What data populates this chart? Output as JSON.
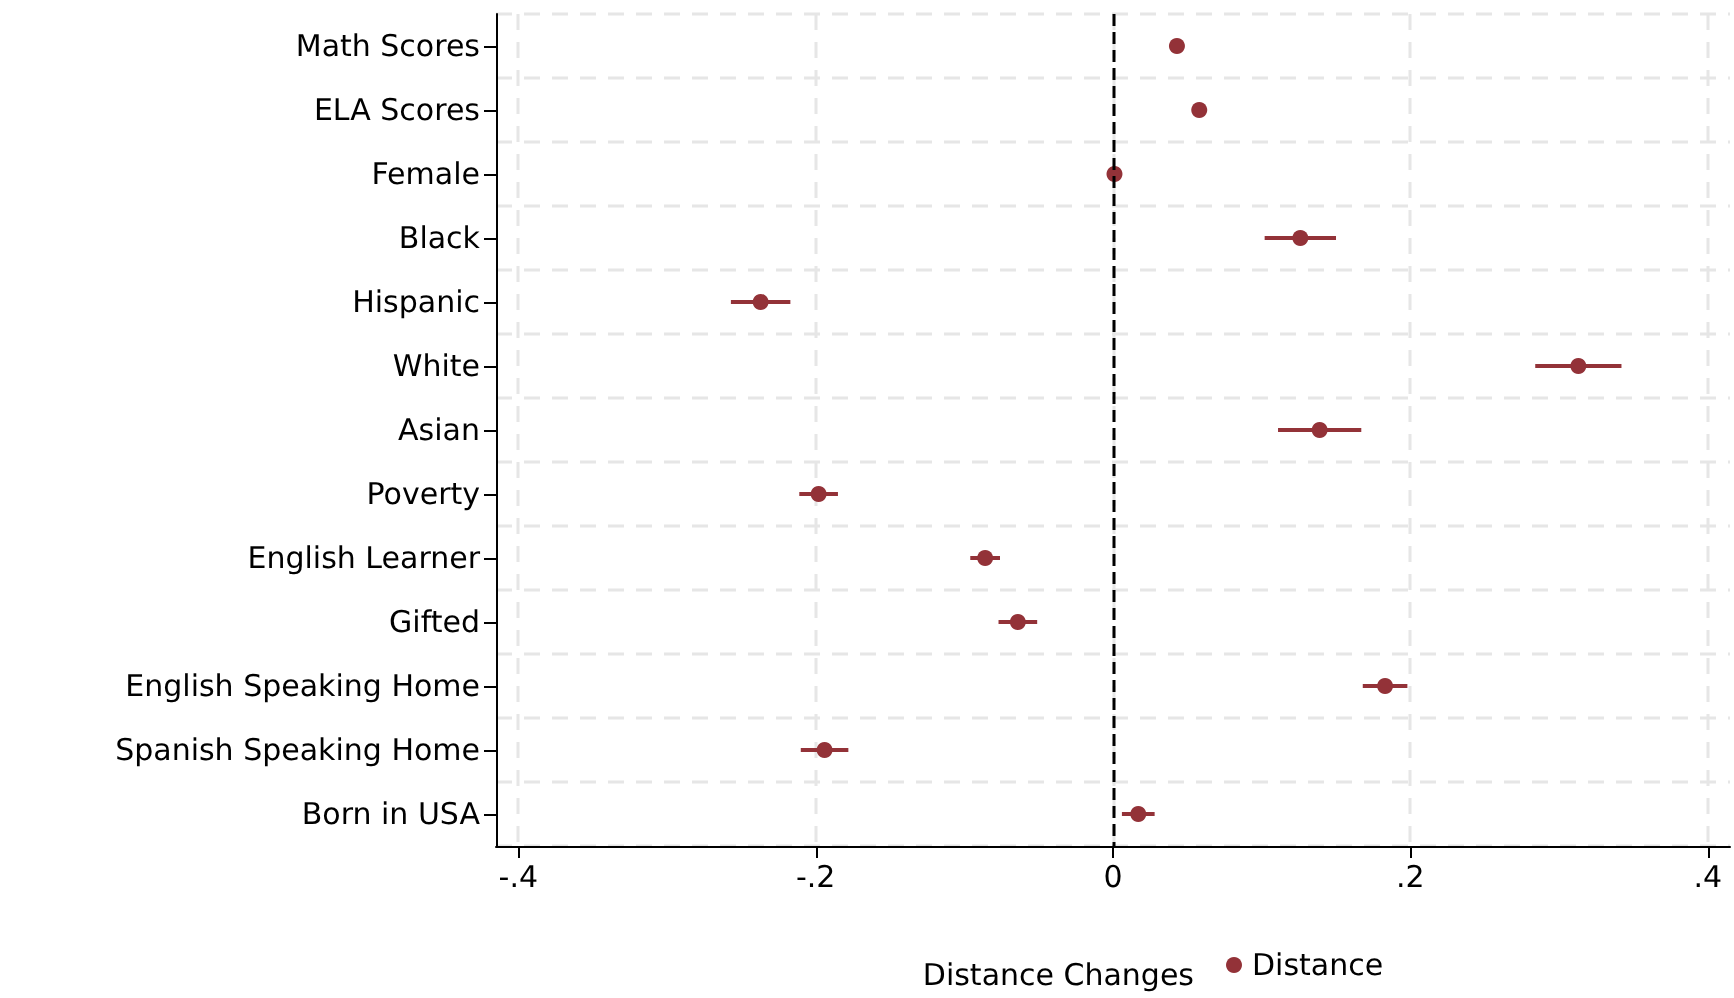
{
  "chart_data": {
    "type": "scatter",
    "orientation": "horizontal",
    "xlabel": "Distance Changes",
    "categories": [
      "Math Scores",
      "ELA Scores",
      "Female",
      "Black",
      "Hispanic",
      "White",
      "Asian",
      "Poverty",
      "English Learner",
      "Gifted",
      "English Speaking Home",
      "Spanish Speaking Home",
      "Born in USA"
    ],
    "series": [
      {
        "name": "Distance",
        "color": "#933238",
        "values": [
          0.043,
          0.058,
          0.001,
          0.126,
          -0.237,
          0.313,
          0.139,
          -0.198,
          -0.086,
          -0.064,
          0.183,
          -0.194,
          0.017
        ],
        "errors": [
          null,
          null,
          null,
          0.024,
          0.02,
          0.029,
          0.028,
          0.013,
          0.01,
          0.013,
          0.015,
          0.016,
          0.011
        ]
      }
    ],
    "xlim": [
      -0.415,
      0.415
    ],
    "xticks": [
      {
        "value": -0.4,
        "label": "-.4"
      },
      {
        "value": -0.2,
        "label": "-.2"
      },
      0,
      {
        "value": 0.2,
        "label": ".2"
      },
      {
        "value": 0.4,
        "label": ".4"
      }
    ],
    "ref_lines": [
      {
        "axis": "x",
        "value": 0,
        "color": "#000000",
        "line_style": "dashed"
      }
    ],
    "grid": true,
    "legend": "bottom",
    "marker": "circle"
  }
}
